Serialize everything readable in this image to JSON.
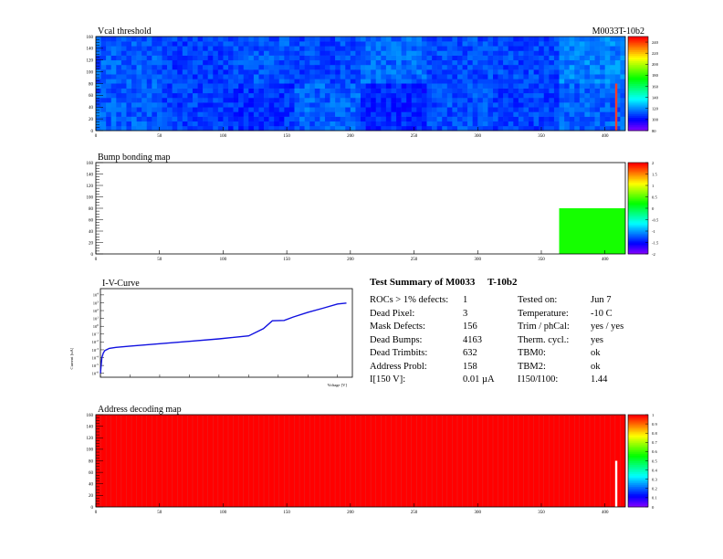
{
  "header": {
    "right_label": "M0033T-10b2"
  },
  "chart_data": [
    {
      "type": "heatmap",
      "title": "Vcal threshold",
      "x_ticks": [
        "0",
        "50",
        "100",
        "150",
        "200",
        "250",
        "300",
        "350",
        "400"
      ],
      "y_ticks": [
        "0",
        "20",
        "40",
        "60",
        "80",
        "100",
        "120",
        "140",
        "160"
      ],
      "xlim": [
        0,
        416
      ],
      "ylim": [
        0,
        160
      ],
      "colorbar_ticks": [
        "80",
        "100",
        "120",
        "140",
        "160",
        "180",
        "200",
        "220",
        "240"
      ],
      "colorbar_range": [
        80,
        250
      ],
      "chip_means_top_row": [
        112,
        108,
        111,
        109,
        114,
        110,
        109,
        118
      ],
      "chip_means_bottom_row": [
        112,
        108,
        106,
        113,
        104,
        110,
        108,
        113
      ],
      "hot_column_x": 408
    },
    {
      "type": "heatmap",
      "title": "Bump bonding map",
      "x_ticks": [
        "0",
        "50",
        "100",
        "150",
        "200",
        "250",
        "300",
        "350",
        "400"
      ],
      "y_ticks": [
        "0",
        "20",
        "40",
        "60",
        "80",
        "100",
        "120",
        "140",
        "160"
      ],
      "xlim": [
        0,
        416
      ],
      "ylim": [
        0,
        160
      ],
      "colorbar_ticks": [
        "-2",
        "-1.5",
        "-1",
        "-0.5",
        "0",
        "0.5",
        "1",
        "1.5",
        "2"
      ],
      "colorbar_range": [
        -2,
        2
      ],
      "filled_region": {
        "x": [
          364,
          416
        ],
        "y": [
          0,
          80
        ],
        "value": 0.3
      }
    },
    {
      "type": "line",
      "title": "I-V-Curve",
      "xlabel": "Voltage [V]",
      "ylabel": "Current [uA]",
      "x_ticks": [
        "0",
        "100",
        "200",
        "300",
        "400",
        "500",
        "600",
        "700",
        "800"
      ],
      "y_tick_exponents": [
        -6,
        -5,
        -4,
        -3,
        -2,
        -1,
        0,
        1,
        2,
        3,
        4
      ],
      "xlim": [
        0,
        850
      ],
      "ylog_range": [
        -6.5,
        4.8
      ],
      "series": [
        {
          "x": [
            0,
            5,
            10,
            15,
            20,
            30,
            50,
            100,
            200,
            300,
            400,
            500,
            550,
            580,
            620,
            650,
            700,
            750,
            800,
            830
          ],
          "y": [
            1e-06,
            0.0001,
            0.0004,
            0.0008,
            0.001,
            0.0015,
            0.002,
            0.003,
            0.006,
            0.012,
            0.025,
            0.06,
            0.5,
            5,
            5.5,
            15,
            60,
            200,
            700,
            900
          ]
        }
      ]
    },
    {
      "type": "heatmap",
      "title": "Address decoding map",
      "x_ticks": [
        "0",
        "50",
        "100",
        "150",
        "200",
        "250",
        "300",
        "350",
        "400"
      ],
      "y_ticks": [
        "0",
        "20",
        "40",
        "60",
        "80",
        "100",
        "120",
        "140",
        "160"
      ],
      "xlim": [
        0,
        416
      ],
      "ylim": [
        0,
        160
      ],
      "colorbar_ticks": [
        "0",
        "0.1",
        "0.2",
        "0.3",
        "0.4",
        "0.5",
        "0.6",
        "0.7",
        "0.8",
        "0.9",
        "1"
      ],
      "colorbar_range": [
        0,
        1
      ],
      "value": 1,
      "white_column": {
        "x": 408,
        "y": [
          0,
          80
        ]
      }
    }
  ],
  "summary": {
    "title": "Test Summary of M0033     T-10b2",
    "rows": [
      {
        "k1": "ROCs > 1% defects:",
        "v1": "1",
        "k2": "Tested on:",
        "v2": "Jun 7"
      },
      {
        "k1": "Dead Pixel:",
        "v1": "3",
        "k2": "Temperature:",
        "v2": "-10 C"
      },
      {
        "k1": "Mask Defects:",
        "v1": "156",
        "k2": "Trim / phCal:",
        "v2": "yes / yes"
      },
      {
        "k1": "Dead Bumps:",
        "v1": "4163",
        "k2": "Therm. cycl.:",
        "v2": "yes"
      },
      {
        "k1": "Dead Trimbits:",
        "v1": "632",
        "k2": "TBM0:",
        "v2": "ok"
      },
      {
        "k1": "Address Probl:",
        "v1": "158",
        "k2": "TBM2:",
        "v2": "ok"
      },
      {
        "k1": "I[150 V]:",
        "v1": "0.01 µA",
        "k2": "I150/I100:",
        "v2": "1.44"
      }
    ]
  }
}
